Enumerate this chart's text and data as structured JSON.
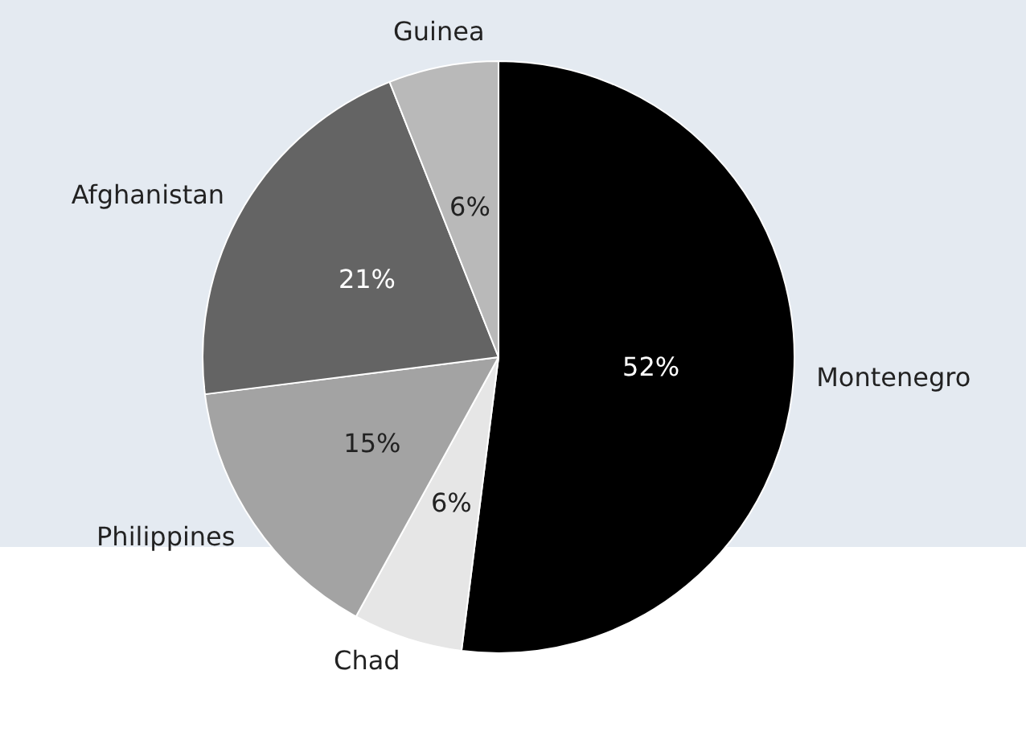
{
  "chart_data": {
    "type": "pie",
    "categories": [
      "Montenegro",
      "Chad",
      "Philippines",
      "Afghanistan",
      "Guinea"
    ],
    "values": [
      52,
      6,
      15,
      21,
      6
    ],
    "colors": [
      "#000000",
      "#e6e6e6",
      "#a3a3a3",
      "#646464",
      "#b9b9b9"
    ],
    "value_labels": [
      "52%",
      "6%",
      "15%",
      "21%",
      "6%"
    ],
    "legend": false
  }
}
